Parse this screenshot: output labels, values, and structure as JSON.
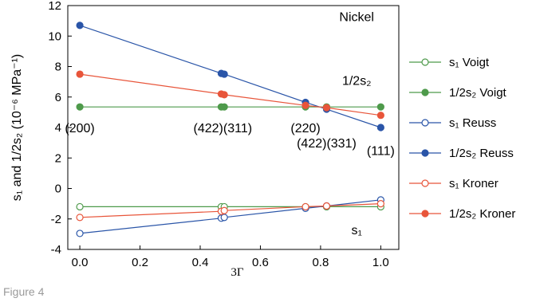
{
  "figure_caption": "Figure 4",
  "chart_data": {
    "type": "line",
    "xlabel": "3Γ",
    "ylabel": "s₁ and 1/2s₂ (10⁻⁶ MPa⁻¹)",
    "xlim": [
      -0.04,
      1.06
    ],
    "ylim": [
      -4,
      12
    ],
    "xticks": [
      "0.0",
      "0.2",
      "0.4",
      "0.6",
      "0.8",
      "1.0"
    ],
    "xtick_values": [
      0,
      0.2,
      0.4,
      0.6,
      0.8,
      1.0
    ],
    "yticks": [
      "-4",
      "-2",
      "0",
      "2",
      "4",
      "6",
      "8",
      "10",
      "12"
    ],
    "ytick_values": [
      -4,
      -2,
      0,
      2,
      4,
      6,
      8,
      10,
      12
    ],
    "grid": false,
    "legend_position": "right",
    "annotations": [
      {
        "text": "Nickel",
        "x": 0.92,
        "y": 11.3
      },
      {
        "text": "1/2s₂",
        "x": 0.92,
        "y": 7.1
      },
      {
        "text": "s₁",
        "x": 0.92,
        "y": -2.7
      },
      {
        "text": "(200)",
        "x": 0.0,
        "y": 4.0
      },
      {
        "text": "(422)(311)",
        "x": 0.475,
        "y": 4.0
      },
      {
        "text": "(220)",
        "x": 0.75,
        "y": 4.0
      },
      {
        "text": "(422)(331)",
        "x": 0.82,
        "y": 3.0
      },
      {
        "text": "(111)",
        "x": 1.0,
        "y": 2.5
      }
    ],
    "series": [
      {
        "name": "s₁ Voigt",
        "color": "#4e9a4b",
        "filled": false,
        "x": [
          0,
          0.47,
          0.48,
          0.75,
          0.82,
          1.0
        ],
        "y": [
          -1.2,
          -1.2,
          -1.2,
          -1.2,
          -1.2,
          -1.2
        ]
      },
      {
        "name": "1/2s₂ Voigt",
        "color": "#4e9a4b",
        "filled": true,
        "x": [
          0,
          0.47,
          0.48,
          0.75,
          0.82,
          1.0
        ],
        "y": [
          5.35,
          5.35,
          5.35,
          5.35,
          5.35,
          5.35
        ]
      },
      {
        "name": "s₁ Reuss",
        "color": "#2a55a8",
        "filled": false,
        "x": [
          0,
          0.47,
          0.48,
          0.75,
          0.82,
          1.0
        ],
        "y": [
          -2.95,
          -1.95,
          -1.9,
          -1.3,
          -1.15,
          -0.75
        ]
      },
      {
        "name": "1/2s₂ Reuss",
        "color": "#2a55a8",
        "filled": true,
        "x": [
          0,
          0.47,
          0.48,
          0.75,
          0.82,
          1.0
        ],
        "y": [
          10.7,
          7.55,
          7.5,
          5.65,
          5.2,
          4.0
        ]
      },
      {
        "name": "s₁  Kroner",
        "color": "#e8553a",
        "filled": false,
        "x": [
          0,
          0.47,
          0.48,
          0.75,
          0.82,
          1.0
        ],
        "y": [
          -1.9,
          -1.5,
          -1.45,
          -1.2,
          -1.15,
          -1.0
        ]
      },
      {
        "name": "1/2s₂ Kroner",
        "color": "#e8553a",
        "filled": true,
        "x": [
          0,
          0.47,
          0.48,
          0.75,
          0.82,
          1.0
        ],
        "y": [
          7.5,
          6.2,
          6.15,
          5.45,
          5.3,
          4.8
        ]
      }
    ]
  }
}
